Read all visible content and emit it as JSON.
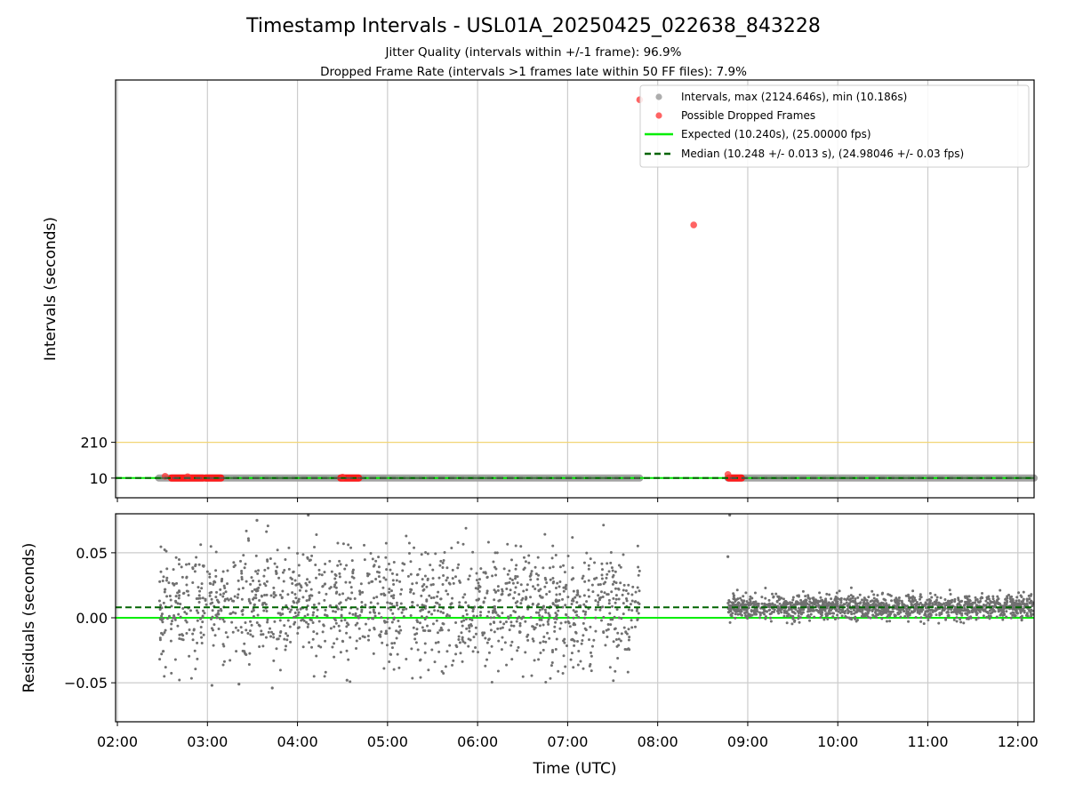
{
  "chart_data": {
    "title": "Timestamp Intervals - USL01A_20250425_022638_843228",
    "subtitles": [
      "Jitter Quality (intervals within +/-1 frame): 96.9%",
      "Dropped Frame Rate (intervals >1 frames late within 50 FF files): 7.9%"
    ],
    "xlabel": "Time (UTC)",
    "x_ticks": [
      "02:00",
      "03:00",
      "04:00",
      "05:00",
      "06:00",
      "07:00",
      "08:00",
      "09:00",
      "10:00",
      "11:00",
      "12:00"
    ],
    "x_range_hours": [
      1.98,
      12.18
    ],
    "panels": [
      {
        "type": "scatter",
        "ylabel": "Intervals (seconds)",
        "yticks": [
          10,
          210
        ],
        "ylim": [
          -100,
          2235
        ],
        "grid": "x",
        "legend": {
          "position": "top-right",
          "entries": [
            {
              "label": "Intervals, max (2124.646s), min (10.186s)",
              "color": "#999999",
              "marker": "dot"
            },
            {
              "label": "Possible Dropped Frames",
              "color": "#ff3030",
              "marker": "dot"
            },
            {
              "label": "Expected (10.240s), (25.00000 fps)",
              "color": "#00ee00",
              "marker": "solid-line"
            },
            {
              "label": "Median (10.248 +/- 0.013 s), (24.98046 +/- 0.03 fps)",
              "color": "#006400",
              "marker": "dashed-line"
            }
          ]
        },
        "threshold_line": {
          "y": 210,
          "color": "#f2d675"
        },
        "expected_line": {
          "y": 10.24,
          "color": "#00ee00"
        },
        "median_line": {
          "y": 10.248,
          "color": "#006400"
        },
        "interval_segments": [
          {
            "x_start": 2.46,
            "x_end": 7.8,
            "y": 10.25
          },
          {
            "x_start": 8.78,
            "x_end": 12.18,
            "y": 10.25
          }
        ],
        "dropped_points": [
          {
            "x": 7.8,
            "y": 2124.6
          },
          {
            "x": 8.4,
            "y": 1425
          },
          {
            "x": 8.78,
            "y": 30
          },
          {
            "x": 2.53,
            "y": 20
          },
          {
            "x": 2.78,
            "y": 18
          },
          {
            "x": 4.5,
            "y": 15
          }
        ],
        "dropped_clusters": [
          {
            "x_start": 2.6,
            "x_end": 2.95
          },
          {
            "x_start": 2.98,
            "x_end": 3.15
          },
          {
            "x_start": 4.48,
            "x_end": 4.68
          },
          {
            "x_start": 8.79,
            "x_end": 8.93
          }
        ]
      },
      {
        "type": "scatter",
        "ylabel": "Residuals (seconds)",
        "ytick_labels": [
          "−0.05",
          "0.00",
          "0.05"
        ],
        "yticks": [
          -0.05,
          0.0,
          0.05
        ],
        "ylim": [
          -0.08,
          0.08
        ],
        "grid": "both",
        "expected_line": {
          "y": 0.0,
          "color": "#00ee00"
        },
        "median_line": {
          "y": 0.008,
          "color": "#006400"
        },
        "residual_groups": [
          {
            "x_start": 2.46,
            "x_end": 7.8,
            "mean": 0.008,
            "spread": 0.022,
            "count": 1500
          },
          {
            "x_start": 8.78,
            "x_end": 12.18,
            "mean": 0.008,
            "spread": 0.0045,
            "count": 1500
          }
        ],
        "outliers": [
          {
            "x": 3.55,
            "y": 0.075
          },
          {
            "x": 4.12,
            "y": 0.079
          },
          {
            "x": 8.8,
            "y": 0.079
          },
          {
            "x": 8.78,
            "y": 0.047
          },
          {
            "x": 3.35,
            "y": -0.051
          },
          {
            "x": 3.72,
            "y": -0.054
          },
          {
            "x": 4.55,
            "y": -0.048
          },
          {
            "x": 3.05,
            "y": -0.052
          }
        ],
        "point_color": "#707070"
      }
    ]
  }
}
